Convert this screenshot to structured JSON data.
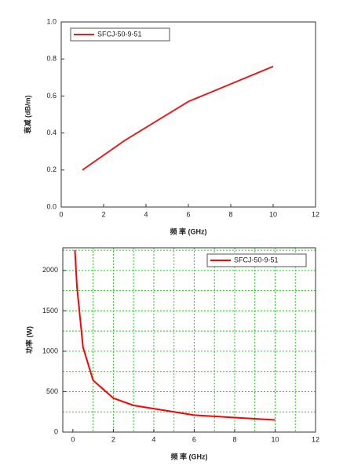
{
  "chart_data": [
    {
      "type": "line",
      "xlabel": "频 率 (GHz)",
      "ylabel": "衰减 (dB/m)",
      "x": [
        1,
        3,
        6,
        10
      ],
      "series": [
        {
          "name": "SFCJ-50-9-51",
          "color": "#e02020",
          "values": [
            0.2,
            0.36,
            0.57,
            0.76
          ]
        }
      ],
      "xlim": [
        0,
        12
      ],
      "xticks": [
        0,
        2,
        4,
        6,
        8,
        10,
        12
      ],
      "ylim": [
        0,
        1
      ],
      "yticks": [
        {
          "value": 0,
          "label": "0.0"
        },
        0.2,
        0.4,
        0.6,
        0.8,
        {
          "value": 1,
          "label": "1.0"
        }
      ],
      "grid": false,
      "legend": "top-left"
    },
    {
      "type": "line",
      "xlabel": "频 率 (GHz)",
      "ylabel": "功率 (W)",
      "x": [
        0.1,
        0.2,
        0.5,
        1,
        2,
        3,
        4,
        5,
        6,
        8,
        10
      ],
      "series": [
        {
          "name": "SFCJ-50-9-51",
          "color": "#ff0000",
          "values": [
            2250,
            1800,
            1050,
            640,
            420,
            330,
            290,
            250,
            210,
            180,
            150
          ]
        }
      ],
      "xlim": [
        -0.5,
        12
      ],
      "xticks": [
        0,
        2,
        4,
        6,
        8,
        10,
        12
      ],
      "ylim": [
        0,
        2280
      ],
      "yticks": [
        0,
        500,
        1000,
        1500,
        2000
      ],
      "grid": true,
      "grid_color": "#22cc22",
      "xgrid": [
        1,
        2,
        3,
        4,
        5,
        6,
        7,
        8,
        9,
        10,
        11
      ],
      "ygrid": [
        250,
        500,
        750,
        1000,
        1250,
        1500,
        1750,
        2000,
        2250
      ],
      "legend": "top-right"
    }
  ]
}
